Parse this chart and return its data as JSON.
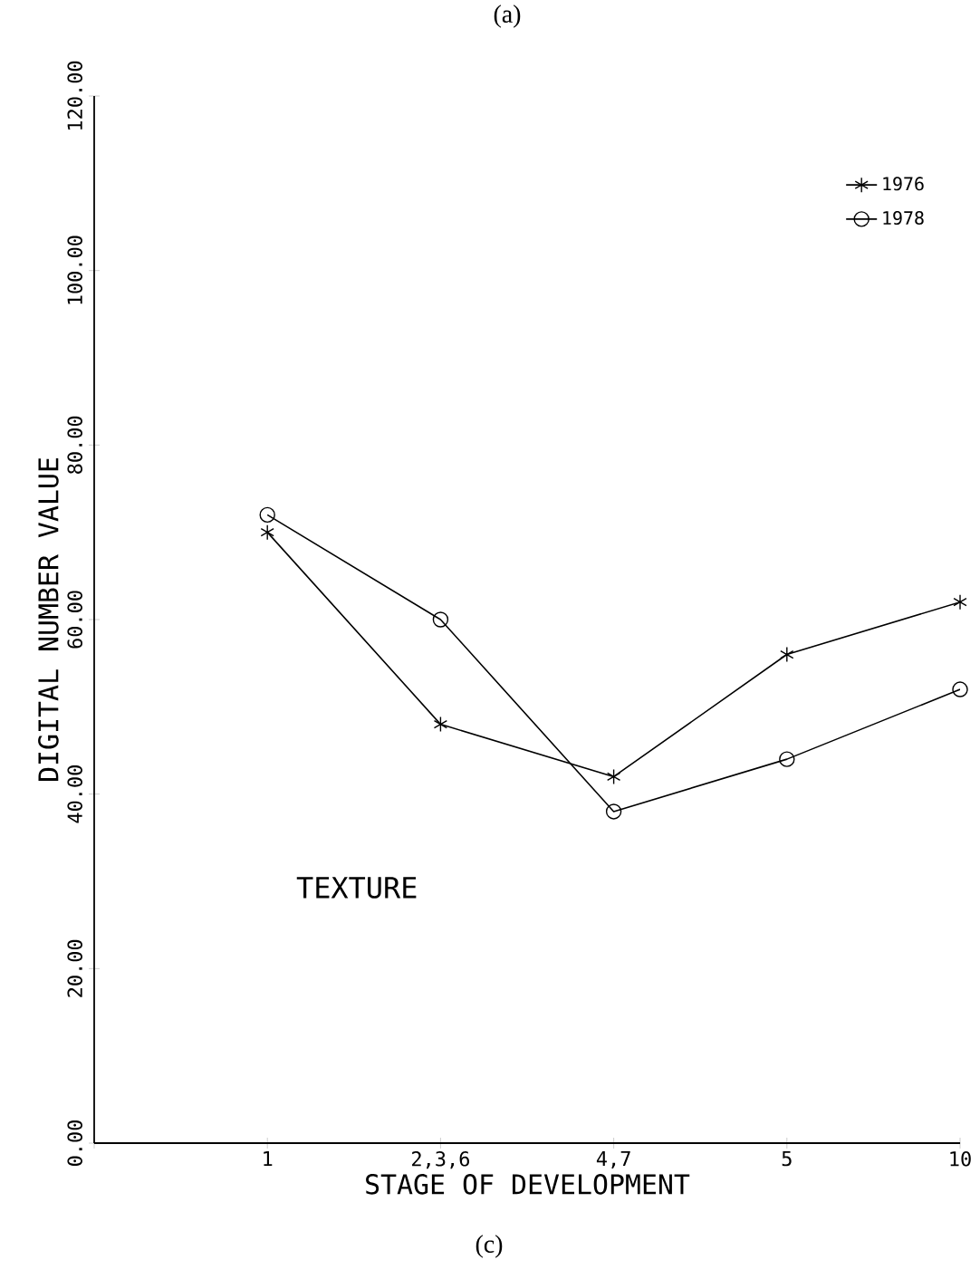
{
  "chart_data": {
    "type": "line",
    "xlabel": "STAGE OF DEVELOPMENT",
    "ylabel": "DIGITAL NUMBER VALUE",
    "categories": [
      null,
      "1",
      "2,3,6",
      "4,7",
      "5",
      "10"
    ],
    "series": [
      {
        "name": "1976",
        "color": "#000000",
        "marker": "cross",
        "values": [
          null,
          70,
          48,
          42,
          56,
          62
        ]
      },
      {
        "name": "1978",
        "color": "#000000",
        "marker": "circle",
        "values": [
          null,
          72,
          60,
          38,
          44,
          52
        ]
      }
    ],
    "ylim": [
      0,
      120
    ],
    "yticks": [
      {
        "value": 0,
        "label": "0.00"
      },
      {
        "value": 20,
        "label": "20.00"
      },
      {
        "value": 40,
        "label": "40.00"
      },
      {
        "value": 60,
        "label": "60.00"
      },
      {
        "value": 80,
        "label": "80.00"
      },
      {
        "value": 100,
        "label": "100.00"
      },
      {
        "value": 120,
        "label": "120.00"
      }
    ],
    "legend": "top right",
    "grid": false,
    "line_style": "solid",
    "annotations": [
      "(a)",
      "TEXTURE",
      "(c)"
    ]
  }
}
